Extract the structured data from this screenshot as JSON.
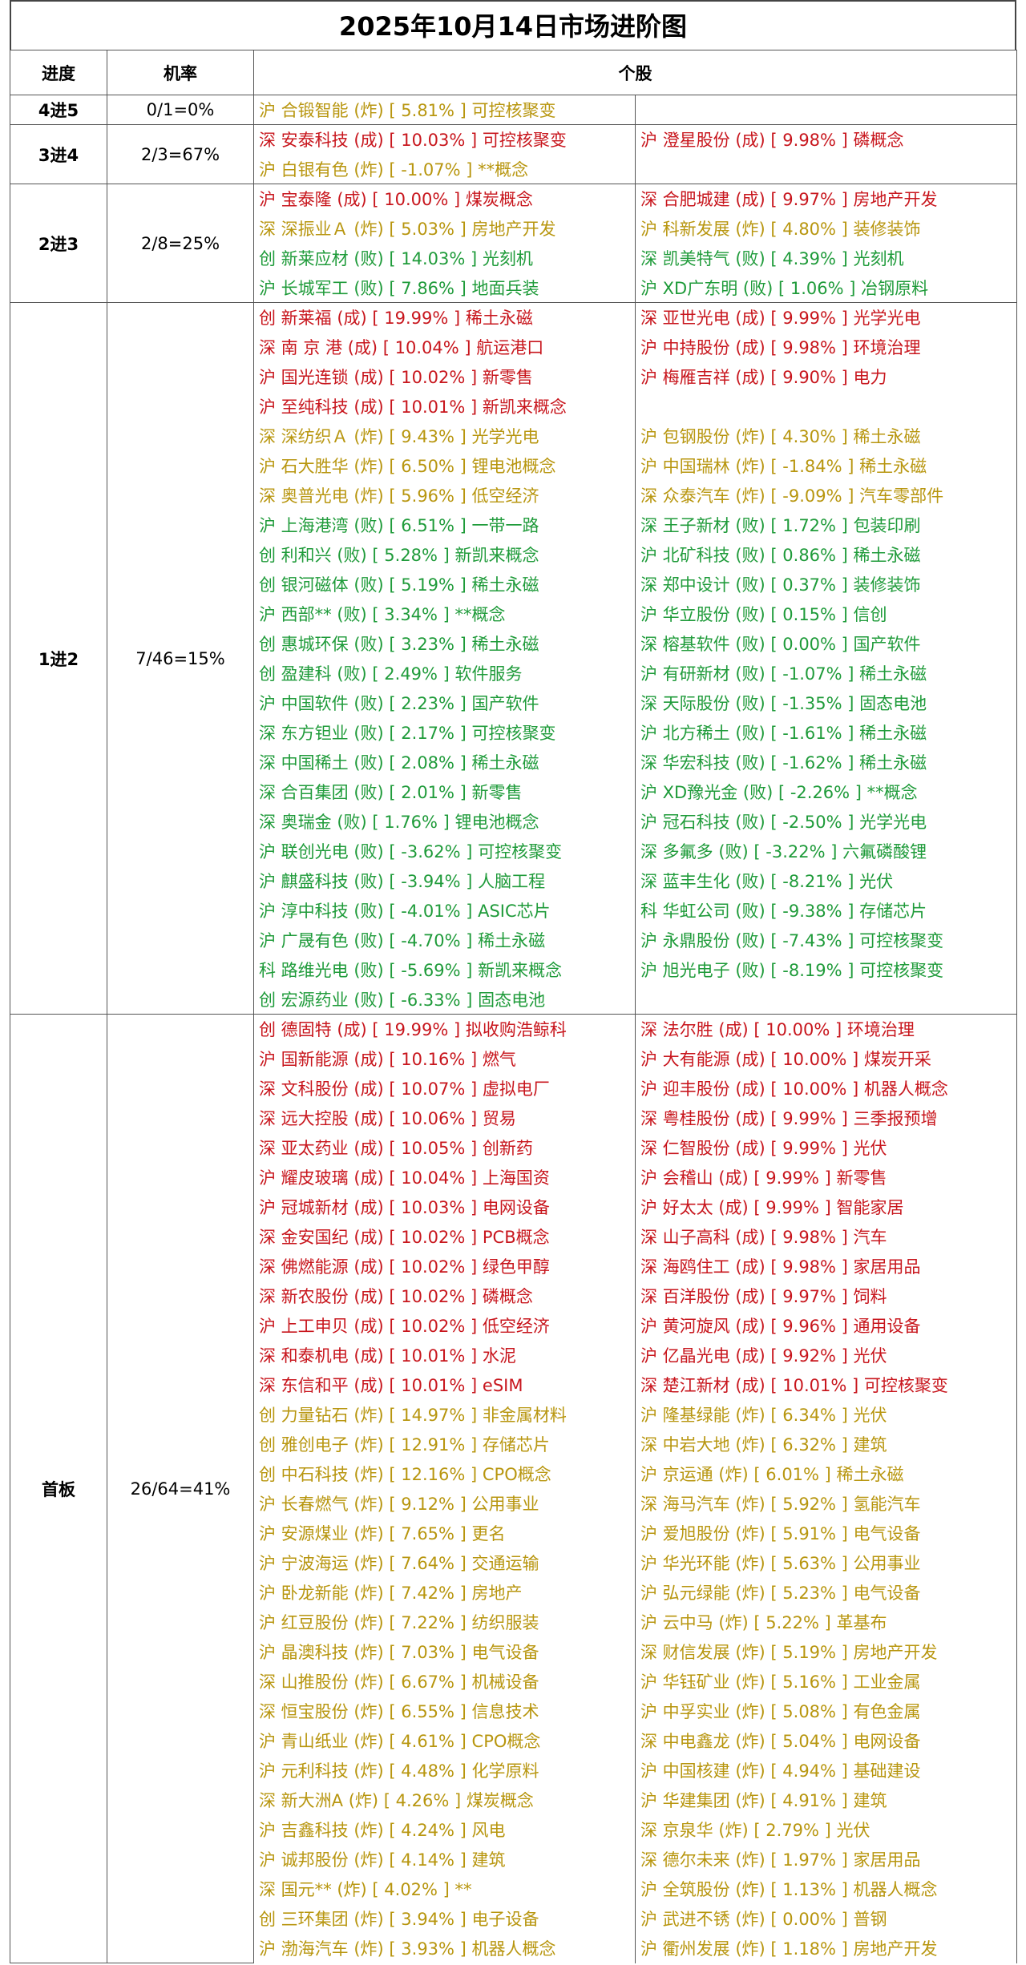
{
  "title": "2025年10月14日市场进阶图",
  "table": {
    "headers": [
      "进度",
      "机率",
      "个股"
    ],
    "groups": [
      {
        "stage": "4进5",
        "rate": "0/1=0%",
        "rows": [
          [
            {
              "text": "沪 合锻智能 (炸) [ 5.81% ] 可控核聚变",
              "color": "#b8960f"
            }
          ]
        ]
      },
      {
        "stage": "3进4",
        "rate": "2/3=67%",
        "rows": [
          [
            {
              "text": "深 安泰科技 (成) [ 10.03% ] 可控核聚变",
              "color": "#c8161d"
            },
            {
              "text": "沪 澄星股份 (成) [ 9.98% ] 磷概念",
              "color": "#c8161d"
            }
          ],
          [
            {
              "text": "沪 白银有色 (炸) [ -1.07% ] **概念",
              "color": "#b8960f"
            }
          ]
        ]
      },
      {
        "stage": "2进3",
        "rate": "2/8=25%",
        "rows": [
          [
            {
              "text": "沪 宝泰隆 (成) [ 10.00% ] 煤炭概念",
              "color": "#c8161d"
            },
            {
              "text": "深 合肥城建 (成) [ 9.97% ] 房地产开发",
              "color": "#c8161d"
            }
          ],
          [
            {
              "text": "深 深振业Ａ (炸) [ 5.03% ] 房地产开发",
              "color": "#b8960f"
            },
            {
              "text": "沪 科新发展 (炸) [ 4.80% ] 装修装饰",
              "color": "#b8960f"
            }
          ],
          [
            {
              "text": "创 新莱应材 (败) [ 14.03% ] 光刻机",
              "color": "#1f9b3a"
            },
            {
              "text": "深 凯美特气 (败) [ 4.39% ] 光刻机",
              "color": "#1f9b3a"
            }
          ],
          [
            {
              "text": "沪 长城军工 (败) [ 7.86% ] 地面兵装",
              "color": "#1f9b3a"
            },
            {
              "text": "沪 XD广东明 (败) [ 1.06% ] 冶钢原料",
              "color": "#1f9b3a"
            }
          ]
        ]
      },
      {
        "stage": "1进2",
        "rate": "7/46=15%",
        "rows": [
          [
            {
              "text": "创 新莱福 (成) [ 19.99% ] 稀土永磁",
              "color": "#c8161d"
            },
            {
              "text": "深 亚世光电 (成) [ 9.99% ] 光学光电",
              "color": "#c8161d"
            }
          ],
          [
            {
              "text": "深 南 京 港 (成) [ 10.04% ] 航运港口",
              "color": "#c8161d"
            },
            {
              "text": "沪 中持股份 (成) [ 9.98% ] 环境治理",
              "color": "#c8161d"
            }
          ],
          [
            {
              "text": "沪 国光连锁 (成) [ 10.02% ] 新零售",
              "color": "#c8161d"
            },
            {
              "text": "沪 梅雁吉祥 (成) [ 9.90% ] 电力",
              "color": "#c8161d"
            }
          ],
          [
            {
              "text": "沪 至纯科技 (成) [ 10.01% ] 新凯来概念",
              "color": "#c8161d"
            }
          ],
          [
            {
              "text": "深 深纺织Ａ (炸) [ 9.43% ] 光学光电",
              "color": "#b8960f"
            },
            {
              "text": "沪 包钢股份 (炸) [ 4.30% ] 稀土永磁",
              "color": "#b8960f"
            }
          ],
          [
            {
              "text": "沪 石大胜华 (炸) [ 6.50% ] 锂电池概念",
              "color": "#b8960f"
            },
            {
              "text": "沪 中国瑞林 (炸) [ -1.84% ] 稀土永磁",
              "color": "#b8960f"
            }
          ],
          [
            {
              "text": "深 奥普光电 (炸) [ 5.96% ] 低空经济",
              "color": "#b8960f"
            },
            {
              "text": "深 众泰汽车 (炸) [ -9.09% ] 汽车零部件",
              "color": "#b8960f"
            }
          ],
          [
            {
              "text": "沪 上海港湾 (败) [ 6.51% ] 一带一路",
              "color": "#1f9b3a"
            },
            {
              "text": "深 王子新材 (败) [ 1.72% ] 包装印刷",
              "color": "#1f9b3a"
            }
          ],
          [
            {
              "text": "创 利和兴 (败) [ 5.28% ] 新凯来概念",
              "color": "#1f9b3a"
            },
            {
              "text": "沪 北矿科技 (败) [ 0.86% ] 稀土永磁",
              "color": "#1f9b3a"
            }
          ],
          [
            {
              "text": "创 银河磁体 (败) [ 5.19% ] 稀土永磁",
              "color": "#1f9b3a"
            },
            {
              "text": "深 郑中设计 (败) [ 0.37% ] 装修装饰",
              "color": "#1f9b3a"
            }
          ],
          [
            {
              "text": "沪 西部** (败) [ 3.34% ] **概念",
              "color": "#1f9b3a"
            },
            {
              "text": "沪 华立股份 (败) [ 0.15% ] 信创",
              "color": "#1f9b3a"
            }
          ],
          [
            {
              "text": "创 惠城环保 (败) [ 3.23% ] 稀土永磁",
              "color": "#1f9b3a"
            },
            {
              "text": "深 榕基软件 (败) [ 0.00% ] 国产软件",
              "color": "#1f9b3a"
            }
          ],
          [
            {
              "text": "创 盈建科 (败) [ 2.49% ] 软件服务",
              "color": "#1f9b3a"
            },
            {
              "text": "沪 有研新材 (败) [ -1.07% ] 稀土永磁",
              "color": "#1f9b3a"
            }
          ],
          [
            {
              "text": "沪 中国软件 (败) [ 2.23% ] 国产软件",
              "color": "#1f9b3a"
            },
            {
              "text": "深 天际股份 (败) [ -1.35% ] 固态电池",
              "color": "#1f9b3a"
            }
          ],
          [
            {
              "text": "深 东方钽业 (败) [ 2.17% ] 可控核聚变",
              "color": "#1f9b3a"
            },
            {
              "text": "沪 北方稀土 (败) [ -1.61% ] 稀土永磁",
              "color": "#1f9b3a"
            }
          ],
          [
            {
              "text": "深 中国稀土 (败) [ 2.08% ] 稀土永磁",
              "color": "#1f9b3a"
            },
            {
              "text": "深 华宏科技 (败) [ -1.62% ] 稀土永磁",
              "color": "#1f9b3a"
            }
          ],
          [
            {
              "text": "深 合百集团 (败) [ 2.01% ] 新零售",
              "color": "#1f9b3a"
            },
            {
              "text": "沪 XD豫光金 (败) [ -2.26% ] **概念",
              "color": "#1f9b3a"
            }
          ],
          [
            {
              "text": "深 奥瑞金 (败) [ 1.76% ] 锂电池概念",
              "color": "#1f9b3a"
            },
            {
              "text": "沪 冠石科技 (败) [ -2.50% ] 光学光电",
              "color": "#1f9b3a"
            }
          ],
          [
            {
              "text": "沪 联创光电 (败) [ -3.62% ] 可控核聚变",
              "color": "#1f9b3a"
            },
            {
              "text": "深 多氟多 (败) [ -3.22% ] 六氟磷酸锂",
              "color": "#1f9b3a"
            }
          ],
          [
            {
              "text": "沪 麒盛科技 (败) [ -3.94% ] 人脑工程",
              "color": "#1f9b3a"
            },
            {
              "text": "深 蓝丰生化 (败) [ -8.21% ] 光伏",
              "color": "#1f9b3a"
            }
          ],
          [
            {
              "text": "沪 淳中科技 (败) [ -4.01% ] ASIC芯片",
              "color": "#1f9b3a"
            },
            {
              "text": "科 华虹公司 (败) [ -9.38% ] 存储芯片",
              "color": "#1f9b3a"
            }
          ],
          [
            {
              "text": "沪 广晟有色 (败) [ -4.70% ] 稀土永磁",
              "color": "#1f9b3a"
            },
            {
              "text": "沪 永鼎股份 (败) [ -7.43% ] 可控核聚变",
              "color": "#1f9b3a"
            }
          ],
          [
            {
              "text": "科 路维光电 (败) [ -5.69% ] 新凯来概念",
              "color": "#1f9b3a"
            },
            {
              "text": "沪 旭光电子 (败) [ -8.19% ] 可控核聚变",
              "color": "#1f9b3a"
            }
          ],
          [
            {
              "text": "创 宏源药业 (败) [ -6.33% ] 固态电池",
              "color": "#1f9b3a"
            }
          ]
        ]
      },
      {
        "stage": "首板",
        "rate": "26/64=41%",
        "rows": [
          [
            {
              "text": "创 德固特 (成) [ 19.99% ] 拟收购浩鲸科",
              "color": "#c8161d"
            },
            {
              "text": "深 法尔胜 (成) [ 10.00% ] 环境治理",
              "color": "#c8161d"
            }
          ],
          [
            {
              "text": "沪 国新能源 (成) [ 10.16% ] 燃气",
              "color": "#c8161d"
            },
            {
              "text": "沪 大有能源 (成) [ 10.00% ] 煤炭开采",
              "color": "#c8161d"
            }
          ],
          [
            {
              "text": "深 文科股份 (成) [ 10.07% ] 虚拟电厂",
              "color": "#c8161d"
            },
            {
              "text": "沪 迎丰股份 (成) [ 10.00% ] 机器人概念",
              "color": "#c8161d"
            }
          ],
          [
            {
              "text": "深 远大控股 (成) [ 10.06% ] 贸易",
              "color": "#c8161d"
            },
            {
              "text": "深 粤桂股份 (成) [ 9.99% ] 三季报预增",
              "color": "#c8161d"
            }
          ],
          [
            {
              "text": "深 亚太药业 (成) [ 10.05% ] 创新药",
              "color": "#c8161d"
            },
            {
              "text": "深 仁智股份 (成) [ 9.99% ] 光伏",
              "color": "#c8161d"
            }
          ],
          [
            {
              "text": "沪 耀皮玻璃 (成) [ 10.04% ] 上海国资",
              "color": "#c8161d"
            },
            {
              "text": "沪 会稽山 (成) [ 9.99% ] 新零售",
              "color": "#c8161d"
            }
          ],
          [
            {
              "text": "沪 冠城新材 (成) [ 10.03% ] 电网设备",
              "color": "#c8161d"
            },
            {
              "text": "沪 好太太 (成) [ 9.99% ] 智能家居",
              "color": "#c8161d"
            }
          ],
          [
            {
              "text": "深 金安国纪 (成) [ 10.02% ] PCB概念",
              "color": "#c8161d"
            },
            {
              "text": "深 山子高科 (成) [ 9.98% ] 汽车",
              "color": "#c8161d"
            }
          ],
          [
            {
              "text": "深 佛燃能源 (成) [ 10.02% ] 绿色甲醇",
              "color": "#c8161d"
            },
            {
              "text": "深 海鸥住工 (成) [ 9.98% ] 家居用品",
              "color": "#c8161d"
            }
          ],
          [
            {
              "text": "深 新农股份 (成) [ 10.02% ] 磷概念",
              "color": "#c8161d"
            },
            {
              "text": "深 百洋股份 (成) [ 9.97% ] 饲料",
              "color": "#c8161d"
            }
          ],
          [
            {
              "text": "沪 上工申贝 (成) [ 10.02% ] 低空经济",
              "color": "#c8161d"
            },
            {
              "text": "沪 黄河旋风 (成) [ 9.96% ] 通用设备",
              "color": "#c8161d"
            }
          ],
          [
            {
              "text": "深 和泰机电 (成) [ 10.01% ] 水泥",
              "color": "#c8161d"
            },
            {
              "text": "沪 亿晶光电 (成) [ 9.92% ] 光伏",
              "color": "#c8161d"
            }
          ],
          [
            {
              "text": "深 东信和平 (成) [ 10.01% ] eSIM",
              "color": "#c8161d"
            },
            {
              "text": "深 楚江新材 (成) [ 10.01% ] 可控核聚变",
              "color": "#c8161d"
            }
          ],
          [
            {
              "text": "创 力量钻石 (炸) [ 14.97% ] 非金属材料",
              "color": "#b8960f"
            },
            {
              "text": "沪 隆基绿能 (炸) [ 6.34% ] 光伏",
              "color": "#b8960f"
            }
          ],
          [
            {
              "text": "创 雅创电子 (炸) [ 12.91% ] 存储芯片",
              "color": "#b8960f"
            },
            {
              "text": "深 中岩大地 (炸) [ 6.32% ] 建筑",
              "color": "#b8960f"
            }
          ],
          [
            {
              "text": "创 中石科技 (炸) [ 12.16% ] CPO概念",
              "color": "#b8960f"
            },
            {
              "text": "沪 京运通 (炸) [ 6.01% ] 稀土永磁",
              "color": "#b8960f"
            }
          ],
          [
            {
              "text": "沪 长春燃气 (炸) [ 9.12% ] 公用事业",
              "color": "#b8960f"
            },
            {
              "text": "深 海马汽车 (炸) [ 5.92% ] 氢能汽车",
              "color": "#b8960f"
            }
          ],
          [
            {
              "text": "沪 安源煤业 (炸) [ 7.65% ] 更名",
              "color": "#b8960f"
            },
            {
              "text": "沪 爱旭股份 (炸) [ 5.91% ] 电气设备",
              "color": "#b8960f"
            }
          ],
          [
            {
              "text": "沪 宁波海运 (炸) [ 7.64% ] 交通运输",
              "color": "#b8960f"
            },
            {
              "text": "沪 华光环能 (炸) [ 5.63% ] 公用事业",
              "color": "#b8960f"
            }
          ],
          [
            {
              "text": "沪 卧龙新能 (炸) [ 7.42% ] 房地产",
              "color": "#b8960f"
            },
            {
              "text": "沪 弘元绿能 (炸) [ 5.23% ] 电气设备",
              "color": "#b8960f"
            }
          ],
          [
            {
              "text": "沪 红豆股份 (炸) [ 7.22% ] 纺织服装",
              "color": "#b8960f"
            },
            {
              "text": "沪 云中马 (炸) [ 5.22% ] 革基布",
              "color": "#b8960f"
            }
          ],
          [
            {
              "text": "沪 晶澳科技 (炸) [ 7.03% ] 电气设备",
              "color": "#b8960f"
            },
            {
              "text": "深 财信发展 (炸) [ 5.19% ] 房地产开发",
              "color": "#b8960f"
            }
          ],
          [
            {
              "text": "深 山推股份 (炸) [ 6.67% ] 机械设备",
              "color": "#b8960f"
            },
            {
              "text": "沪 华钰矿业 (炸) [ 5.16% ] 工业金属",
              "color": "#b8960f"
            }
          ],
          [
            {
              "text": "深 恒宝股份 (炸) [ 6.55% ] 信息技术",
              "color": "#b8960f"
            },
            {
              "text": "沪 中孚实业 (炸) [ 5.08% ] 有色金属",
              "color": "#b8960f"
            }
          ],
          [
            {
              "text": "沪 青山纸业 (炸) [ 4.61% ] CPO概念",
              "color": "#b8960f"
            },
            {
              "text": "深 中电鑫龙 (炸) [ 5.04% ] 电网设备",
              "color": "#b8960f"
            }
          ],
          [
            {
              "text": "沪 元利科技 (炸) [ 4.48% ] 化学原料",
              "color": "#b8960f"
            },
            {
              "text": "沪 中国核建 (炸) [ 4.94% ] 基础建设",
              "color": "#b8960f"
            }
          ],
          [
            {
              "text": "深 新大洲A (炸) [ 4.26% ] 煤炭概念",
              "color": "#b8960f"
            },
            {
              "text": "沪 华建集团 (炸) [ 4.91% ] 建筑",
              "color": "#b8960f"
            }
          ],
          [
            {
              "text": "沪 吉鑫科技 (炸) [ 4.24% ] 风电",
              "color": "#b8960f"
            },
            {
              "text": "深 京泉华 (炸) [ 2.79% ] 光伏",
              "color": "#b8960f"
            }
          ],
          [
            {
              "text": "沪 诚邦股份 (炸) [ 4.14% ] 建筑",
              "color": "#b8960f"
            },
            {
              "text": "深 德尔未来 (炸) [ 1.97% ] 家居用品",
              "color": "#b8960f"
            }
          ],
          [
            {
              "text": "深 国元** (炸) [ 4.02% ] **",
              "color": "#b8960f"
            },
            {
              "text": "沪 全筑股份 (炸) [ 1.13% ] 机器人概念",
              "color": "#b8960f"
            }
          ],
          [
            {
              "text": "创 三环集团 (炸) [ 3.94% ] 电子设备",
              "color": "#b8960f"
            },
            {
              "text": "沪 武进不锈 (炸) [ 0.00% ] 普钢",
              "color": "#b8960f"
            }
          ],
          [
            {
              "text": "沪 渤海汽车 (炸) [ 3.93% ] 机器人概念",
              "color": "#b8960f"
            },
            {
              "text": "沪 衢州发展 (炸) [ 1.18% ] 房地产开发",
              "color": "#b8960f"
            }
          ]
        ]
      }
    ]
  }
}
